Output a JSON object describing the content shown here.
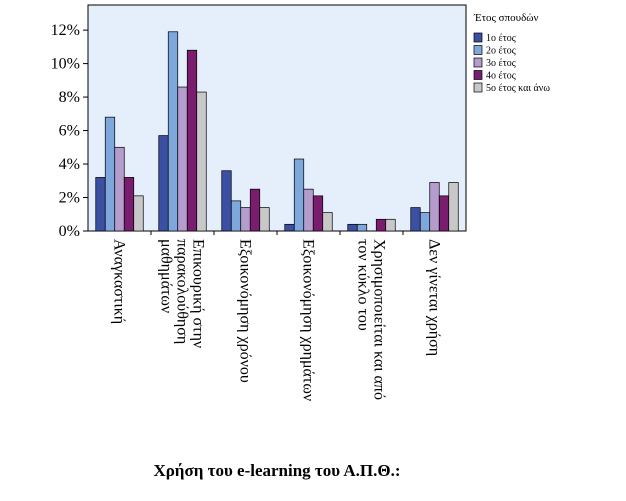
{
  "chart_data": {
    "type": "bar",
    "xlabel": "Χρήση του e-learning του Α.Π.Θ.:",
    "ylabel": "",
    "ylim": [
      0,
      13.5
    ],
    "y_ticks": [
      0,
      2,
      4,
      6,
      8,
      10,
      12
    ],
    "y_tick_suffix": "%",
    "grid": false,
    "legend_position": "top-right",
    "legend_title": "Έτος σπουδών",
    "categories": [
      [
        "Αναγκαστική"
      ],
      [
        "Επικουρική στην",
        "παρακολούθηση",
        "μαθημάτων"
      ],
      [
        "Εξοικονόμηση χρόνου"
      ],
      [
        "Εξοικονόμηση χρημάτων"
      ],
      [
        "Χρησιμοποιείται και από",
        "τον κύκλο του"
      ],
      [
        "Δεν γίνεται χρήση"
      ]
    ],
    "series": [
      {
        "name": "1ο έτος",
        "color": "#3b4fa3",
        "values": [
          3.2,
          5.7,
          3.6,
          0.4,
          0.4,
          1.4
        ]
      },
      {
        "name": "2ο έτος",
        "color": "#7ea8dc",
        "values": [
          6.8,
          11.9,
          1.8,
          4.3,
          0.4,
          1.1
        ]
      },
      {
        "name": "3ο έτος",
        "color": "#b49ccc",
        "values": [
          5.0,
          8.6,
          1.4,
          2.5,
          0.0,
          2.9
        ]
      },
      {
        "name": "4ο έτος",
        "color": "#7b1d6f",
        "values": [
          3.2,
          10.8,
          2.5,
          2.1,
          0.7,
          2.1
        ]
      },
      {
        "name": "5ο έτος και άνω",
        "color": "#c8c8c8",
        "values": [
          2.1,
          8.3,
          1.4,
          1.1,
          0.7,
          2.9
        ]
      }
    ]
  }
}
